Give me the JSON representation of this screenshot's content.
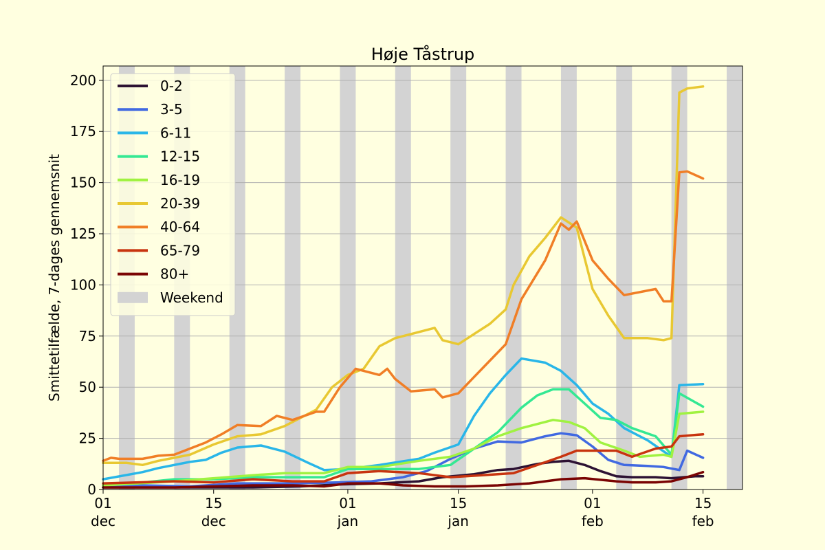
{
  "chart_data": {
    "type": "line",
    "title": "Høje Tåstrup",
    "xlabel": "",
    "ylabel": "Smittetilfælde, 7-dages gennemsnit",
    "x_axis": {
      "start": "2020-12-01",
      "end": "2021-02-20",
      "ticks": [
        {
          "date": "2020-12-01",
          "day": "01",
          "month": "dec"
        },
        {
          "date": "2020-12-15",
          "day": "15",
          "month": "dec"
        },
        {
          "date": "2021-01-01",
          "day": "01",
          "month": "jan"
        },
        {
          "date": "2021-01-15",
          "day": "15",
          "month": "jan"
        },
        {
          "date": "2021-02-01",
          "day": "01",
          "month": "feb"
        },
        {
          "date": "2021-02-15",
          "day": "15",
          "month": "feb"
        }
      ]
    },
    "ylim": [
      0,
      207
    ],
    "yticks": [
      0,
      25,
      50,
      75,
      100,
      125,
      150,
      175,
      200
    ],
    "grid": "horizontal",
    "legend_position": "upper-left",
    "weekend_label": "Weekend",
    "weekend_color": "#d3d3d3",
    "weekends": [
      [
        "2020-12-03",
        "2020-12-04"
      ],
      [
        "2020-12-10",
        "2020-12-11"
      ],
      [
        "2020-12-17",
        "2020-12-18"
      ],
      [
        "2020-12-24",
        "2020-12-25"
      ],
      [
        "2020-12-31",
        "2021-01-01"
      ],
      [
        "2021-01-07",
        "2021-01-08"
      ],
      [
        "2021-01-14",
        "2021-01-15"
      ],
      [
        "2021-01-21",
        "2021-01-22"
      ],
      [
        "2021-01-28",
        "2021-01-29"
      ],
      [
        "2021-02-04",
        "2021-02-05"
      ],
      [
        "2021-02-11",
        "2021-02-12"
      ],
      [
        "2021-02-18",
        "2021-02-19"
      ]
    ],
    "series": [
      {
        "name": "0-2",
        "color": "#2d1233",
        "points": [
          [
            "2020-12-01",
            1
          ],
          [
            "2020-12-10",
            1
          ],
          [
            "2020-12-20",
            1
          ],
          [
            "2020-12-26",
            1.5
          ],
          [
            "2020-12-31",
            2.5
          ],
          [
            "2021-01-05",
            3
          ],
          [
            "2021-01-10",
            4
          ],
          [
            "2021-01-13",
            6
          ],
          [
            "2021-01-17",
            7.5
          ],
          [
            "2021-01-20",
            9.5
          ],
          [
            "2021-01-22",
            10
          ],
          [
            "2021-01-25",
            12.5
          ],
          [
            "2021-01-27",
            13.5
          ],
          [
            "2021-01-29",
            14
          ],
          [
            "2021-01-31",
            12
          ],
          [
            "2021-02-02",
            9
          ],
          [
            "2021-02-04",
            6.5
          ],
          [
            "2021-02-06",
            6
          ],
          [
            "2021-02-09",
            6
          ],
          [
            "2021-02-11",
            5.5
          ],
          [
            "2021-02-14",
            6.5
          ],
          [
            "2021-02-15",
            6.5
          ]
        ]
      },
      {
        "name": "3-5",
        "color": "#4169e1",
        "points": [
          [
            "2020-12-01",
            1
          ],
          [
            "2020-12-06",
            2
          ],
          [
            "2020-12-12",
            1.5
          ],
          [
            "2020-12-18",
            3
          ],
          [
            "2020-12-25",
            3
          ],
          [
            "2020-12-31",
            3.5
          ],
          [
            "2021-01-04",
            4
          ],
          [
            "2021-01-08",
            6
          ],
          [
            "2021-01-11",
            9
          ],
          [
            "2021-01-14",
            15
          ],
          [
            "2021-01-17",
            20
          ],
          [
            "2021-01-20",
            23.5
          ],
          [
            "2021-01-23",
            23
          ],
          [
            "2021-01-26",
            26
          ],
          [
            "2021-01-28",
            27.5
          ],
          [
            "2021-01-30",
            26.5
          ],
          [
            "2021-02-01",
            21
          ],
          [
            "2021-02-03",
            14.5
          ],
          [
            "2021-02-05",
            12
          ],
          [
            "2021-02-08",
            11.5
          ],
          [
            "2021-02-10",
            11
          ],
          [
            "2021-02-12",
            9.5
          ],
          [
            "2021-02-13",
            19
          ],
          [
            "2021-02-15",
            15.5
          ]
        ]
      },
      {
        "name": "6-11",
        "color": "#29b6e8",
        "points": [
          [
            "2020-12-01",
            5
          ],
          [
            "2020-12-06",
            8.5
          ],
          [
            "2020-12-08",
            10.5
          ],
          [
            "2020-12-12",
            13.5
          ],
          [
            "2020-12-14",
            14.5
          ],
          [
            "2020-12-16",
            18
          ],
          [
            "2020-12-18",
            20.5
          ],
          [
            "2020-12-21",
            21.5
          ],
          [
            "2020-12-24",
            18.5
          ],
          [
            "2020-12-27",
            13
          ],
          [
            "2020-12-29",
            9.5
          ],
          [
            "2021-01-01",
            10
          ],
          [
            "2021-01-05",
            12
          ],
          [
            "2021-01-10",
            15
          ],
          [
            "2021-01-12",
            18
          ],
          [
            "2021-01-15",
            22
          ],
          [
            "2021-01-17",
            36
          ],
          [
            "2021-01-19",
            47
          ],
          [
            "2021-01-21",
            56
          ],
          [
            "2021-01-23",
            64
          ],
          [
            "2021-01-26",
            62
          ],
          [
            "2021-01-28",
            58
          ],
          [
            "2021-01-30",
            51
          ],
          [
            "2021-02-01",
            42
          ],
          [
            "2021-02-03",
            37
          ],
          [
            "2021-02-05",
            30
          ],
          [
            "2021-02-08",
            24
          ],
          [
            "2021-02-11",
            16
          ],
          [
            "2021-02-12",
            51
          ],
          [
            "2021-02-15",
            51.5
          ]
        ]
      },
      {
        "name": "12-15",
        "color": "#34e893",
        "points": [
          [
            "2020-12-01",
            2
          ],
          [
            "2020-12-05",
            3
          ],
          [
            "2020-12-10",
            5
          ],
          [
            "2020-12-15",
            5
          ],
          [
            "2020-12-20",
            6
          ],
          [
            "2020-12-25",
            6
          ],
          [
            "2020-12-29",
            6
          ],
          [
            "2021-01-01",
            10
          ],
          [
            "2021-01-05",
            10
          ],
          [
            "2021-01-10",
            10
          ],
          [
            "2021-01-14",
            12
          ],
          [
            "2021-01-17",
            20
          ],
          [
            "2021-01-20",
            28
          ],
          [
            "2021-01-23",
            40
          ],
          [
            "2021-01-25",
            46
          ],
          [
            "2021-01-27",
            49
          ],
          [
            "2021-01-29",
            49
          ],
          [
            "2021-01-31",
            42
          ],
          [
            "2021-02-02",
            35
          ],
          [
            "2021-02-04",
            34
          ],
          [
            "2021-02-06",
            30
          ],
          [
            "2021-02-09",
            26
          ],
          [
            "2021-02-11",
            17
          ],
          [
            "2021-02-12",
            47
          ],
          [
            "2021-02-15",
            40.5
          ]
        ]
      },
      {
        "name": "16-19",
        "color": "#a0f241",
        "points": [
          [
            "2020-12-01",
            2
          ],
          [
            "2020-12-10",
            4
          ],
          [
            "2020-12-20",
            7
          ],
          [
            "2020-12-24",
            8
          ],
          [
            "2020-12-29",
            8
          ],
          [
            "2021-01-01",
            11
          ],
          [
            "2021-01-05",
            11
          ],
          [
            "2021-01-10",
            14
          ],
          [
            "2021-01-14",
            16
          ],
          [
            "2021-01-17",
            20
          ],
          [
            "2021-01-20",
            26
          ],
          [
            "2021-01-23",
            30
          ],
          [
            "2021-01-27",
            34
          ],
          [
            "2021-01-29",
            33
          ],
          [
            "2021-01-31",
            30
          ],
          [
            "2021-02-02",
            23
          ],
          [
            "2021-02-05",
            19
          ],
          [
            "2021-02-07",
            16
          ],
          [
            "2021-02-10",
            17
          ],
          [
            "2021-02-11",
            16
          ],
          [
            "2021-02-12",
            37
          ],
          [
            "2021-02-15",
            38
          ]
        ]
      },
      {
        "name": "20-39",
        "color": "#e8c832",
        "points": [
          [
            "2020-12-01",
            13
          ],
          [
            "2020-12-04",
            13
          ],
          [
            "2020-12-06",
            12
          ],
          [
            "2020-12-08",
            14
          ],
          [
            "2020-12-12",
            17
          ],
          [
            "2020-12-15",
            22
          ],
          [
            "2020-12-18",
            26
          ],
          [
            "2020-12-21",
            27
          ],
          [
            "2020-12-24",
            31
          ],
          [
            "2020-12-26",
            35
          ],
          [
            "2020-12-28",
            39
          ],
          [
            "2020-12-30",
            50
          ],
          [
            "2021-01-01",
            56
          ],
          [
            "2021-01-03",
            59
          ],
          [
            "2021-01-05",
            70
          ],
          [
            "2021-01-07",
            74
          ],
          [
            "2021-01-10",
            77
          ],
          [
            "2021-01-12",
            79
          ],
          [
            "2021-01-13",
            73
          ],
          [
            "2021-01-15",
            71
          ],
          [
            "2021-01-17",
            76
          ],
          [
            "2021-01-19",
            81
          ],
          [
            "2021-01-21",
            88
          ],
          [
            "2021-01-22",
            100
          ],
          [
            "2021-01-24",
            114
          ],
          [
            "2021-01-26",
            123
          ],
          [
            "2021-01-28",
            133
          ],
          [
            "2021-01-30",
            128
          ],
          [
            "2021-02-01",
            98
          ],
          [
            "2021-02-03",
            85
          ],
          [
            "2021-02-05",
            74
          ],
          [
            "2021-02-08",
            74
          ],
          [
            "2021-02-10",
            73
          ],
          [
            "2021-02-11",
            74
          ],
          [
            "2021-02-12",
            194
          ],
          [
            "2021-02-13",
            196
          ],
          [
            "2021-02-15",
            197
          ]
        ]
      },
      {
        "name": "40-64",
        "color": "#f07e26",
        "points": [
          [
            "2020-12-01",
            14
          ],
          [
            "2020-12-02",
            15.5
          ],
          [
            "2020-12-03",
            15
          ],
          [
            "2020-12-06",
            15
          ],
          [
            "2020-12-08",
            16.5
          ],
          [
            "2020-12-10",
            17
          ],
          [
            "2020-12-14",
            23
          ],
          [
            "2020-12-16",
            27
          ],
          [
            "2020-12-18",
            31.5
          ],
          [
            "2020-12-21",
            31
          ],
          [
            "2020-12-23",
            36
          ],
          [
            "2020-12-25",
            34
          ],
          [
            "2020-12-28",
            38
          ],
          [
            "2020-12-29",
            38
          ],
          [
            "2020-12-31",
            50
          ],
          [
            "2021-01-02",
            59
          ],
          [
            "2021-01-05",
            56
          ],
          [
            "2021-01-06",
            59
          ],
          [
            "2021-01-07",
            54
          ],
          [
            "2021-01-09",
            48
          ],
          [
            "2021-01-12",
            49
          ],
          [
            "2021-01-13",
            45
          ],
          [
            "2021-01-15",
            47
          ],
          [
            "2021-01-17",
            55
          ],
          [
            "2021-01-19",
            63
          ],
          [
            "2021-01-21",
            71
          ],
          [
            "2021-01-23",
            93
          ],
          [
            "2021-01-26",
            112
          ],
          [
            "2021-01-28",
            130
          ],
          [
            "2021-01-29",
            127
          ],
          [
            "2021-01-30",
            131
          ],
          [
            "2021-02-01",
            112
          ],
          [
            "2021-02-03",
            103
          ],
          [
            "2021-02-05",
            95
          ],
          [
            "2021-02-09",
            98
          ],
          [
            "2021-02-10",
            92
          ],
          [
            "2021-02-11",
            92
          ],
          [
            "2021-02-12",
            155
          ],
          [
            "2021-02-13",
            155.5
          ],
          [
            "2021-02-15",
            152
          ]
        ]
      },
      {
        "name": "65-79",
        "color": "#c8340f",
        "points": [
          [
            "2020-12-01",
            3
          ],
          [
            "2020-12-10",
            4
          ],
          [
            "2020-12-15",
            3.5
          ],
          [
            "2020-12-20",
            5
          ],
          [
            "2020-12-25",
            4
          ],
          [
            "2020-12-29",
            4
          ],
          [
            "2021-01-01",
            8
          ],
          [
            "2021-01-05",
            9
          ],
          [
            "2021-01-10",
            8
          ],
          [
            "2021-01-14",
            6
          ],
          [
            "2021-01-18",
            7
          ],
          [
            "2021-01-22",
            8
          ],
          [
            "2021-01-25",
            12
          ],
          [
            "2021-01-28",
            16
          ],
          [
            "2021-01-30",
            19
          ],
          [
            "2021-02-02",
            19
          ],
          [
            "2021-02-04",
            19
          ],
          [
            "2021-02-06",
            16
          ],
          [
            "2021-02-09",
            20
          ],
          [
            "2021-02-11",
            21
          ],
          [
            "2021-02-12",
            26
          ],
          [
            "2021-02-15",
            27
          ]
        ]
      },
      {
        "name": "80+",
        "color": "#7a0403",
        "points": [
          [
            "2020-12-01",
            1
          ],
          [
            "2020-12-10",
            1
          ],
          [
            "2020-12-20",
            2
          ],
          [
            "2020-12-25",
            2
          ],
          [
            "2020-12-29",
            1.5
          ],
          [
            "2021-01-01",
            3
          ],
          [
            "2021-01-05",
            3
          ],
          [
            "2021-01-08",
            2
          ],
          [
            "2021-01-12",
            1.5
          ],
          [
            "2021-01-16",
            1.5
          ],
          [
            "2021-01-20",
            2
          ],
          [
            "2021-01-24",
            3
          ],
          [
            "2021-01-28",
            5
          ],
          [
            "2021-01-31",
            5.5
          ],
          [
            "2021-02-04",
            4
          ],
          [
            "2021-02-06",
            3.5
          ],
          [
            "2021-02-09",
            3.5
          ],
          [
            "2021-02-11",
            4
          ],
          [
            "2021-02-13",
            6
          ],
          [
            "2021-02-15",
            8.5
          ]
        ]
      }
    ]
  }
}
